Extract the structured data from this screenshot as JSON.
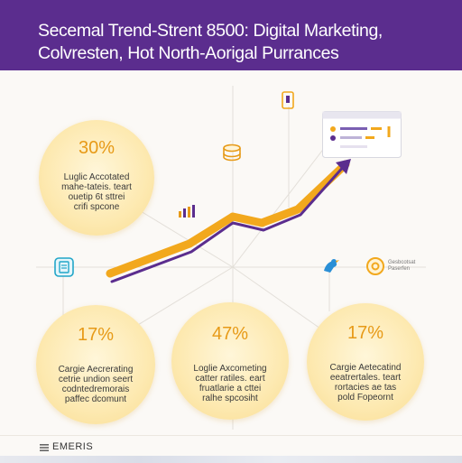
{
  "header": {
    "title_line1": "Secemal Trend-Strent 8500: Digital Marketing,",
    "title_line2": "Colvresten, Hot North-Aorigal Purrances"
  },
  "stats": {
    "top": {
      "value": "30%",
      "lines": [
        "Luglic Accotated",
        "mahe-tateis. teart",
        "ouetip 6t sttrei",
        "crifi spcone"
      ]
    },
    "bottom_left": {
      "value": "17%",
      "lines": [
        "Cargie Aecrerating",
        "cetrie undion seert",
        "codntedremorais",
        "paffec dcomunt"
      ]
    },
    "bottom_center": {
      "value": "47%",
      "lines": [
        "Loglie Axcometing",
        "catter ratiles. eart",
        "fruatlarie a cttei",
        "ralhe spcosiht"
      ]
    },
    "bottom_right": {
      "value": "17%",
      "lines": [
        "Cargie Aetecatind",
        "eeatrertales. teart",
        "rortacies ae tas",
        "pold Fopeornt"
      ]
    }
  },
  "side_card": {
    "lines": [
      "Gesbcotsat",
      "Paserfen"
    ]
  },
  "icons": [
    "clipboard-icon",
    "phone-icon",
    "coins-icon",
    "bar-chart-icon",
    "dashboard-window-icon",
    "bird-icon",
    "clock-icon"
  ],
  "footer": {
    "label": "EMERIS"
  },
  "colors": {
    "header_bg": "#5b2d8e",
    "trend_orange": "#f2a81d",
    "trend_purple": "#5b2d8e",
    "accent": "#e79a17"
  }
}
